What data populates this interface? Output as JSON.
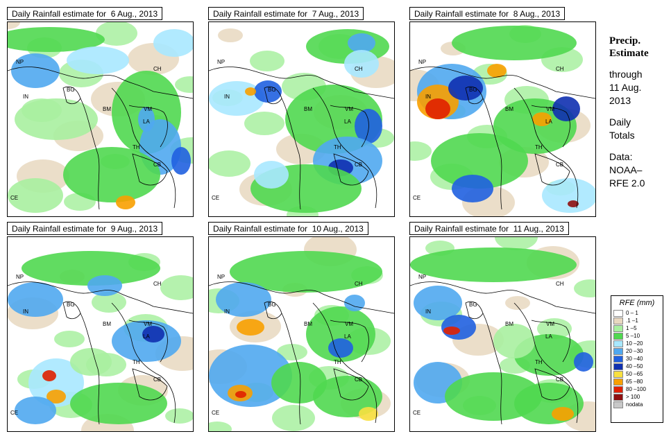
{
  "panels": [
    {
      "title": "Daily Rainfall estimate for  6 Aug., 2013"
    },
    {
      "title": "Daily Rainfall estimate for  7 Aug., 2013"
    },
    {
      "title": "Daily Rainfall estimate for  8 Aug., 2013"
    },
    {
      "title": "Daily Rainfall estimate for  9 Aug., 2013"
    },
    {
      "title": "Daily Rainfall estimate for  10 Aug., 2013"
    },
    {
      "title": "Daily Rainfall estimate for  11 Aug., 2013"
    }
  ],
  "countries": {
    "np": "NP",
    "ch": "CH",
    "in": "IN",
    "bg": "BG",
    "bm": "BM",
    "vm": "VM",
    "la": "LA",
    "th": "TH",
    "cb": "CB",
    "ce": "CE"
  },
  "sidebar": {
    "title_line1": "Precip.",
    "title_line2": "Estimate",
    "through": "through",
    "date_line1": "11 Aug.",
    "date_line2": "2013",
    "daily": "Daily",
    "totals": "Totals",
    "data_label": "Data:",
    "data_source1": "NOAA–",
    "data_source2": "RFE 2.0"
  },
  "legend": {
    "title": "RFE (mm)",
    "items": [
      {
        "label": "0 – 1",
        "color": "#ffffff"
      },
      {
        "label": ".1 –1",
        "color": "#e8d8c0"
      },
      {
        "label": "1 –5",
        "color": "#a8f0a0"
      },
      {
        "label": "5 –10",
        "color": "#50d850"
      },
      {
        "label": "10 –20",
        "color": "#a8e8ff"
      },
      {
        "label": "20 –30",
        "color": "#50a8f0"
      },
      {
        "label": "30 –40",
        "color": "#2060e0"
      },
      {
        "label": "40 –50",
        "color": "#1030b0"
      },
      {
        "label": "50 –65",
        "color": "#f8e040"
      },
      {
        "label": "65 –80",
        "color": "#f8a000"
      },
      {
        "label": "80 –100",
        "color": "#e02000"
      },
      {
        "label": "> 100",
        "color": "#901010"
      },
      {
        "label": "nodata",
        "color": "#c8c8c8"
      }
    ]
  }
}
